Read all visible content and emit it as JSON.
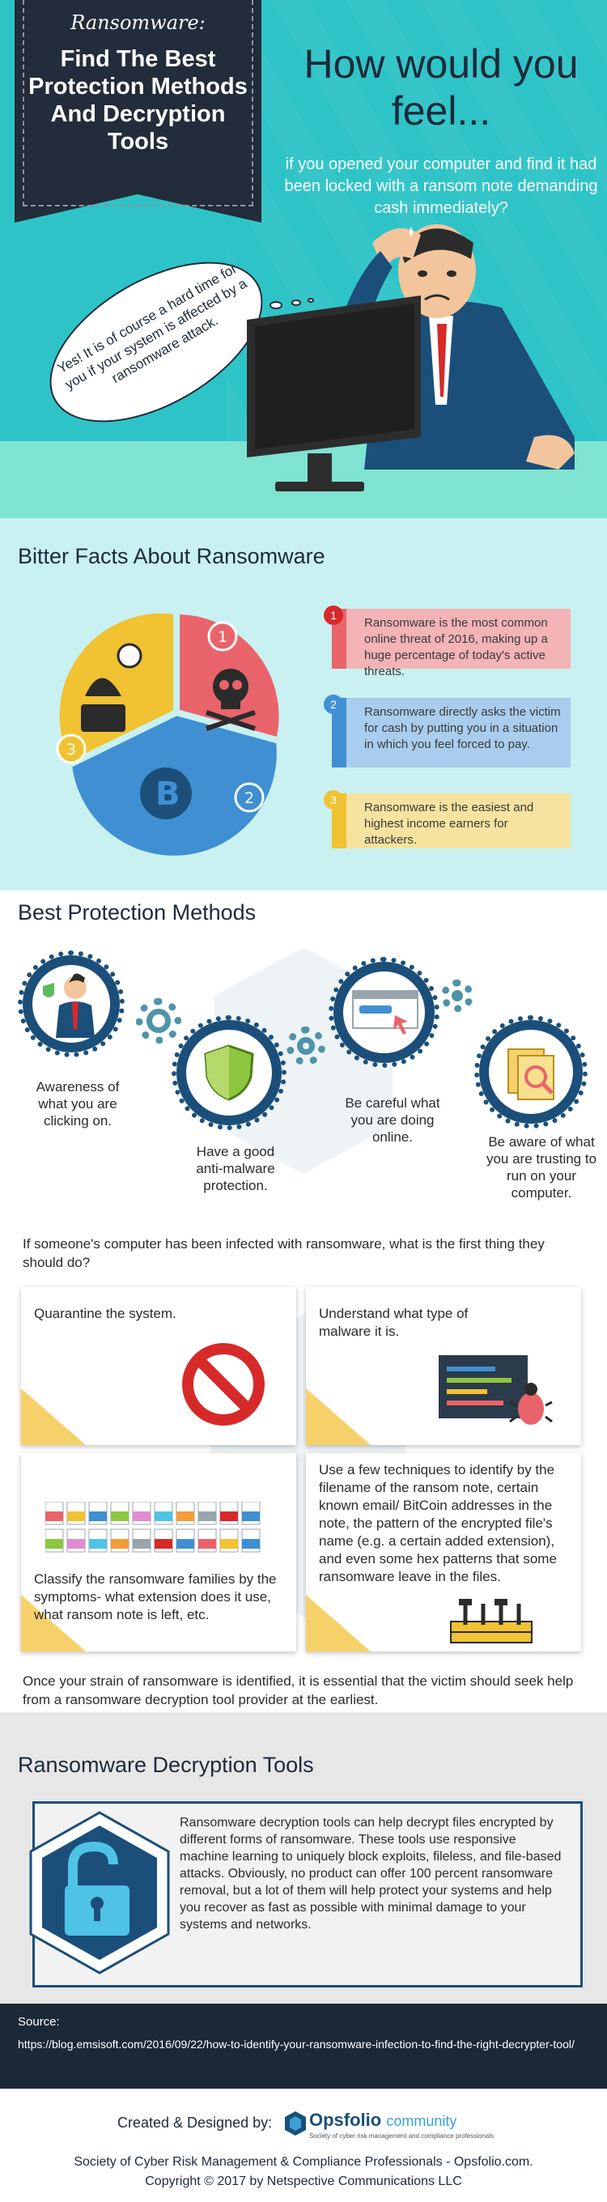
{
  "hero": {
    "kicker": "Ransomware:",
    "title": "Find The Best Protection Methods And Decryption Tools",
    "question": "How would you feel...",
    "subquestion": "if you opened your computer and find it had been locked with a ransom note demanding cash immediately?",
    "bubble": "Yes!  It is of course a hard time for you if your system is affected by a ransomware attack."
  },
  "facts": {
    "title": "Bitter Facts About Ransomware",
    "items": [
      {
        "num": "1",
        "text": "Ransomware is the most common online threat of 2016, making up a huge percentage of today's active threats.",
        "color": "#e9646a",
        "bg": "#f4b3b6"
      },
      {
        "num": "2",
        "text": "Ransomware directly asks the victim for cash by putting you in a situation in which you feel forced to pay.",
        "color": "#3f8fd2",
        "bg": "#a9cdee"
      },
      {
        "num": "3",
        "text": "Ransomware is the easiest and highest income earners for attackers.",
        "color": "#f1c232",
        "bg": "#f7e3a0"
      }
    ]
  },
  "protection": {
    "title": "Best Protection Methods",
    "methods": [
      "Awareness of what you are clicking on.",
      "Have a good anti-malware protection.",
      "Be careful what you are doing online.",
      "Be aware of what you are trusting to run on your computer."
    ],
    "question": "If someone's computer has been infected with ransomware, what is the first thing they should do?",
    "cards": [
      "Quarantine the system.",
      "Understand what type of malware it is.",
      "Classify the ransomware families by the symptoms- what extension does it use, what ransom note is left, etc.",
      "Use a few techniques to identify by the filename of the ransom note, certain known email/ BitCoin addresses in the note, the pattern of the encrypted file's name (e.g. a certain added extension), and even some hex patterns that some ransomware leave in the files."
    ],
    "closing": "Once your strain of ransomware is identified, it is essential that the victim should seek help from a ransomware decryption tool provider at the earliest."
  },
  "decrypt": {
    "title": "Ransomware Decryption Tools",
    "text": "Ransomware decryption tools can help decrypt files encrypted by different forms of ransomware. These tools use responsive machine learning to uniquely block exploits, fileless, and file-based attacks. Obviously, no product can offer 100 percent ransomware removal, but a lot of them will help protect your systems and help you recover as fast as possible with minimal damage to your systems and networks."
  },
  "source": {
    "label": "Source:",
    "url": "https://blog.emsisoft.com/2016/09/22/how-to-identify-your-ransomware-infection-to-find-the-right-decrypter-tool/"
  },
  "footer": {
    "created": "Created & Designed by:",
    "brand": "Opsfolio",
    "brand_suffix": "community",
    "tagline": "Society of cyber risk management and compliance professionals",
    "society": "Society of Cyber Risk Management & Compliance Professionals - Opsfolio.com.",
    "copyright": "Copyright © 2017 by Netspective Communications LLC"
  }
}
